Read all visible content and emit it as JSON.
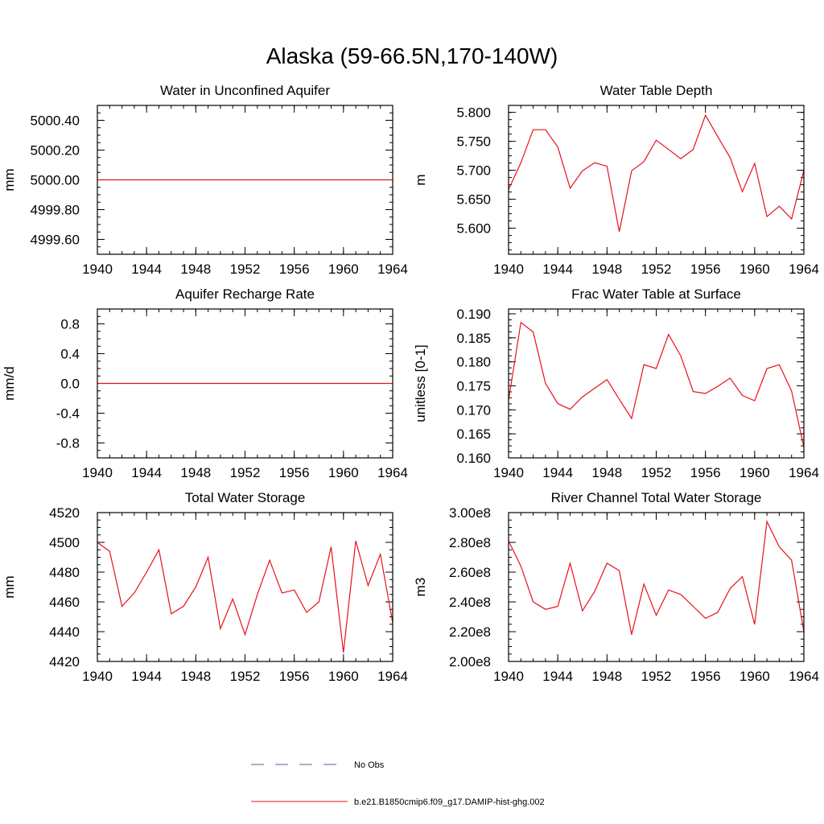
{
  "figure": {
    "title": "Alaska (59-66.5N,170-140W)"
  },
  "legend": {
    "items": [
      {
        "label": "No Obs",
        "color": "#5060a0",
        "dash": true
      },
      {
        "label": "b.e21.B1850cmip6.f09_g17.DAMIP-hist-ghg.002",
        "color": "#e8101a",
        "dash": false
      }
    ]
  },
  "chart_data": [
    {
      "type": "line",
      "title": "Water in Unconfined Aquifer",
      "ylabel": "mm",
      "xlim": [
        1940,
        1964
      ],
      "ylim": [
        4999.5,
        5000.5
      ],
      "xticks": [
        1940,
        1944,
        1948,
        1952,
        1956,
        1960,
        1964
      ],
      "yticks": [
        4999.6,
        4999.8,
        5000.0,
        5000.2,
        5000.4
      ],
      "yticklabels": [
        "4999.60",
        "4999.80",
        "5000.00",
        "5000.20",
        "5000.40"
      ],
      "series": [
        {
          "color": "#e8101a",
          "x": [
            1940,
            1941,
            1942,
            1943,
            1944,
            1945,
            1946,
            1947,
            1948,
            1949,
            1950,
            1951,
            1952,
            1953,
            1954,
            1955,
            1956,
            1957,
            1958,
            1959,
            1960,
            1961,
            1962,
            1963,
            1964
          ],
          "values": [
            5000,
            5000,
            5000,
            5000,
            5000,
            5000,
            5000,
            5000,
            5000,
            5000,
            5000,
            5000,
            5000,
            5000,
            5000,
            5000,
            5000,
            5000,
            5000,
            5000,
            5000,
            5000,
            5000,
            5000,
            5000
          ]
        }
      ]
    },
    {
      "type": "line",
      "title": "Water Table Depth",
      "ylabel": "m",
      "xlim": [
        1940,
        1964
      ],
      "ylim": [
        5.555,
        5.812
      ],
      "xticks": [
        1940,
        1944,
        1948,
        1952,
        1956,
        1960,
        1964
      ],
      "yticks": [
        5.6,
        5.65,
        5.7,
        5.75,
        5.8
      ],
      "yticklabels": [
        "5.600",
        "5.650",
        "5.700",
        "5.750",
        "5.800"
      ],
      "series": [
        {
          "color": "#e8101a",
          "x": [
            1940,
            1941,
            1942,
            1943,
            1944,
            1945,
            1946,
            1947,
            1948,
            1949,
            1950,
            1951,
            1952,
            1953,
            1954,
            1955,
            1956,
            1957,
            1958,
            1959,
            1960,
            1961,
            1962,
            1963,
            1964
          ],
          "values": [
            5.667,
            5.713,
            5.77,
            5.77,
            5.74,
            5.669,
            5.699,
            5.713,
            5.707,
            5.594,
            5.699,
            5.715,
            5.752,
            5.736,
            5.72,
            5.736,
            5.795,
            5.758,
            5.722,
            5.663,
            5.712,
            5.62,
            5.638,
            5.616,
            5.7
          ]
        }
      ]
    },
    {
      "type": "line",
      "title": "Aquifer Recharge Rate",
      "ylabel": "mm/d",
      "xlim": [
        1940,
        1964
      ],
      "ylim": [
        -1.0,
        1.0
      ],
      "xticks": [
        1940,
        1944,
        1948,
        1952,
        1956,
        1960,
        1964
      ],
      "yticks": [
        -0.8,
        -0.4,
        0.0,
        0.4,
        0.8
      ],
      "yticklabels": [
        "-0.8",
        "-0.4",
        "0.0",
        "0.4",
        "0.8"
      ],
      "series": [
        {
          "color": "#e8101a",
          "x": [
            1940,
            1941,
            1942,
            1943,
            1944,
            1945,
            1946,
            1947,
            1948,
            1949,
            1950,
            1951,
            1952,
            1953,
            1954,
            1955,
            1956,
            1957,
            1958,
            1959,
            1960,
            1961,
            1962,
            1963,
            1964
          ],
          "values": [
            0,
            0,
            0,
            0,
            0,
            0,
            0,
            0,
            0,
            0,
            0,
            0,
            0,
            0,
            0,
            0,
            0,
            0,
            0,
            0,
            0,
            0,
            0,
            0,
            0
          ]
        }
      ]
    },
    {
      "type": "line",
      "title": "Frac Water Table at Surface",
      "ylabel": "unitless [0-1]",
      "xlim": [
        1940,
        1964
      ],
      "ylim": [
        0.16,
        0.191
      ],
      "xticks": [
        1940,
        1944,
        1948,
        1952,
        1956,
        1960,
        1964
      ],
      "yticks": [
        0.16,
        0.165,
        0.17,
        0.175,
        0.18,
        0.185,
        0.19
      ],
      "yticklabels": [
        "0.160",
        "0.165",
        "0.170",
        "0.175",
        "0.180",
        "0.185",
        "0.190"
      ],
      "series": [
        {
          "color": "#e8101a",
          "x": [
            1940,
            1941,
            1942,
            1943,
            1944,
            1945,
            1946,
            1947,
            1948,
            1949,
            1950,
            1951,
            1952,
            1953,
            1954,
            1955,
            1956,
            1957,
            1958,
            1959,
            1960,
            1961,
            1962,
            1963,
            1964
          ],
          "values": [
            0.172,
            0.1882,
            0.1862,
            0.1755,
            0.1713,
            0.1701,
            0.1727,
            0.1745,
            0.1763,
            0.1722,
            0.1682,
            0.1794,
            0.1786,
            0.1857,
            0.1812,
            0.1738,
            0.1734,
            0.1749,
            0.1766,
            0.173,
            0.1719,
            0.1786,
            0.1794,
            0.1739,
            0.1622
          ]
        }
      ]
    },
    {
      "type": "line",
      "title": "Total Water Storage",
      "ylabel": "mm",
      "xlim": [
        1940,
        1964
      ],
      "ylim": [
        4420,
        4520
      ],
      "xticks": [
        1940,
        1944,
        1948,
        1952,
        1956,
        1960,
        1964
      ],
      "yticks": [
        4420,
        4440,
        4460,
        4480,
        4500,
        4520
      ],
      "yticklabels": [
        "4420",
        "4440",
        "4460",
        "4480",
        "4500",
        "4520"
      ],
      "series": [
        {
          "color": "#e8101a",
          "x": [
            1940,
            1941,
            1942,
            1943,
            1944,
            1945,
            1946,
            1947,
            1948,
            1949,
            1950,
            1951,
            1952,
            1953,
            1954,
            1955,
            1956,
            1957,
            1958,
            1959,
            1960,
            1961,
            1962,
            1963,
            1964
          ],
          "values": [
            4500,
            4494,
            4457,
            4466,
            4480,
            4495,
            4452,
            4457,
            4470,
            4490,
            4442,
            4462,
            4438,
            4465,
            4488,
            4466,
            4468,
            4453,
            4460,
            4497,
            4426,
            4501,
            4471,
            4492,
            4446
          ]
        }
      ]
    },
    {
      "type": "line",
      "title": "River Channel Total Water Storage",
      "ylabel": "m3",
      "xlim": [
        1940,
        1964
      ],
      "ylim": [
        200000000,
        300000000
      ],
      "xticks": [
        1940,
        1944,
        1948,
        1952,
        1956,
        1960,
        1964
      ],
      "yticks": [
        200000000,
        220000000,
        240000000,
        260000000,
        280000000,
        300000000
      ],
      "yticklabels": [
        "2.00e8",
        "2.20e8",
        "2.40e8",
        "2.60e8",
        "2.80e8",
        "3.00e8"
      ],
      "series": [
        {
          "color": "#e8101a",
          "x": [
            1940,
            1941,
            1942,
            1943,
            1944,
            1945,
            1946,
            1947,
            1948,
            1949,
            1950,
            1951,
            1952,
            1953,
            1954,
            1955,
            1956,
            1957,
            1958,
            1959,
            1960,
            1961,
            1962,
            1963,
            1964
          ],
          "values": [
            281000000,
            264000000,
            240000000,
            235000000,
            237000000,
            266000000,
            234000000,
            247000000,
            266000000,
            261000000,
            218000000,
            252000000,
            231000000,
            248000000,
            245000000,
            237000000,
            229000000,
            233000000,
            249000000,
            257000000,
            225000000,
            294000000,
            277000000,
            268000000,
            220000000
          ]
        }
      ]
    }
  ]
}
